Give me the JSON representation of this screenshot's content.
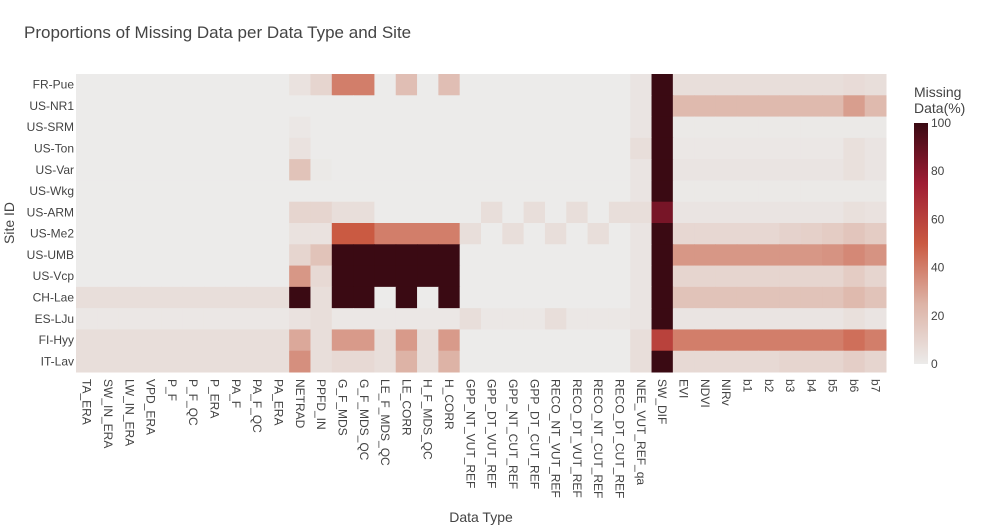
{
  "chart_data": {
    "type": "heatmap",
    "title": "Proportions of Missing Data per Data Type and Site",
    "xlabel": "Data Type",
    "ylabel": "Site ID",
    "x": [
      "TA_ERA",
      "SW_IN_ERA",
      "LW_IN_ERA",
      "VPD_ERA",
      "P_F",
      "P_F_QC",
      "P_ERA",
      "PA_F",
      "PA_F_QC",
      "PA_ERA",
      "NETRAD",
      "PPFD_IN",
      "G_F_MDS",
      "G_F_MDS_QC",
      "LE_F_MDS_QC",
      "LE_CORR",
      "H_F_MDS_QC",
      "H_CORR",
      "GPP_NT_VUT_REF",
      "GPP_DT_VUT_REF",
      "GPP_NT_CUT_REF",
      "GPP_DT_CUT_REF",
      "RECO_NT_VUT_REF",
      "RECO_DT_VUT_REF",
      "RECO_NT_CUT_REF",
      "RECO_DT_CUT_REF",
      "NEE_VUT_REF_qa",
      "SW_DIF",
      "EVI",
      "NDVI",
      "NIRv",
      "b1",
      "b2",
      "b3",
      "b4",
      "b5",
      "b6",
      "b7"
    ],
    "y": [
      "FR-Pue",
      "US-NR1",
      "US-SRM",
      "US-Ton",
      "US-Var",
      "US-Wkg",
      "US-ARM",
      "US-Me2",
      "US-UMB",
      "US-Vcp",
      "CH-Lae",
      "ES-LJu",
      "FI-Hyy",
      "IT-Lav"
    ],
    "z": [
      [
        0,
        0,
        0,
        0,
        0,
        0,
        0,
        0,
        0,
        0,
        4,
        10,
        40,
        40,
        0,
        20,
        0,
        20,
        0,
        0,
        0,
        0,
        0,
        0,
        0,
        0,
        3,
        100,
        6,
        6,
        6,
        6,
        6,
        6,
        6,
        6,
        7,
        6
      ],
      [
        0,
        0,
        0,
        0,
        0,
        0,
        0,
        0,
        0,
        0,
        0,
        0,
        0,
        0,
        0,
        0,
        0,
        0,
        0,
        0,
        0,
        0,
        0,
        0,
        0,
        0,
        3,
        100,
        22,
        22,
        22,
        22,
        22,
        22,
        22,
        22,
        31,
        22
      ],
      [
        0,
        0,
        0,
        0,
        0,
        0,
        0,
        0,
        0,
        0,
        2,
        0,
        0,
        0,
        0,
        0,
        0,
        0,
        0,
        0,
        0,
        0,
        0,
        0,
        0,
        0,
        3,
        100,
        1,
        1,
        1,
        1,
        1,
        1,
        1,
        1,
        1,
        1
      ],
      [
        0,
        0,
        0,
        0,
        0,
        0,
        0,
        0,
        0,
        0,
        4,
        0,
        0,
        0,
        0,
        0,
        0,
        0,
        0,
        0,
        0,
        0,
        0,
        0,
        0,
        0,
        6,
        100,
        2,
        2,
        2,
        2,
        2,
        2,
        2,
        2,
        5,
        3
      ],
      [
        0,
        0,
        0,
        0,
        0,
        0,
        0,
        0,
        0,
        0,
        18,
        1,
        0,
        0,
        0,
        0,
        0,
        0,
        0,
        0,
        0,
        0,
        0,
        0,
        0,
        0,
        3,
        100,
        3,
        3,
        3,
        3,
        3,
        3,
        3,
        3,
        5,
        3
      ],
      [
        0,
        0,
        0,
        0,
        0,
        0,
        0,
        0,
        0,
        0,
        0,
        0,
        0,
        0,
        0,
        0,
        0,
        0,
        0,
        0,
        0,
        0,
        0,
        0,
        0,
        0,
        3,
        100,
        1,
        1,
        1,
        1,
        1,
        1,
        1,
        1,
        1,
        1
      ],
      [
        0,
        0,
        0,
        0,
        0,
        0,
        0,
        0,
        0,
        0,
        10,
        10,
        6,
        6,
        0,
        0,
        0,
        0,
        0,
        6,
        0,
        6,
        0,
        6,
        0,
        6,
        6,
        85,
        3,
        3,
        3,
        3,
        3,
        3,
        3,
        3,
        5,
        4
      ],
      [
        0,
        0,
        0,
        0,
        0,
        0,
        0,
        0,
        0,
        0,
        4,
        4,
        50,
        50,
        40,
        40,
        40,
        40,
        6,
        0,
        6,
        0,
        6,
        0,
        6,
        0,
        3,
        100,
        9,
        9,
        9,
        9,
        9,
        11,
        12,
        14,
        17,
        14
      ],
      [
        0,
        0,
        0,
        0,
        0,
        0,
        0,
        0,
        0,
        0,
        10,
        18,
        100,
        100,
        100,
        100,
        100,
        100,
        0,
        0,
        0,
        0,
        0,
        0,
        0,
        0,
        3,
        100,
        33,
        33,
        33,
        33,
        33,
        33,
        33,
        34,
        37,
        34
      ],
      [
        0,
        0,
        0,
        0,
        0,
        0,
        0,
        0,
        0,
        0,
        33,
        8,
        100,
        100,
        100,
        100,
        100,
        100,
        0,
        0,
        0,
        0,
        0,
        0,
        0,
        0,
        3,
        100,
        10,
        10,
        10,
        10,
        10,
        10,
        10,
        10,
        14,
        10
      ],
      [
        6,
        6,
        6,
        6,
        6,
        6,
        6,
        6,
        6,
        6,
        100,
        6,
        100,
        100,
        0,
        100,
        0,
        100,
        0,
        0,
        0,
        0,
        0,
        0,
        0,
        0,
        3,
        100,
        18,
        18,
        18,
        18,
        18,
        18,
        18,
        18,
        22,
        18
      ],
      [
        2,
        2,
        2,
        2,
        2,
        2,
        2,
        2,
        2,
        2,
        4,
        6,
        2,
        2,
        2,
        2,
        2,
        2,
        6,
        2,
        2,
        2,
        6,
        2,
        2,
        2,
        3,
        100,
        3,
        3,
        3,
        3,
        3,
        3,
        3,
        3,
        5,
        3
      ],
      [
        6,
        6,
        6,
        6,
        6,
        6,
        6,
        6,
        6,
        6,
        28,
        6,
        32,
        32,
        6,
        32,
        6,
        32,
        0,
        0,
        0,
        0,
        0,
        0,
        0,
        0,
        6,
        60,
        40,
        40,
        40,
        40,
        40,
        40,
        40,
        40,
        44,
        40
      ],
      [
        6,
        6,
        6,
        6,
        6,
        6,
        6,
        6,
        6,
        6,
        35,
        6,
        8,
        8,
        6,
        25,
        6,
        25,
        0,
        0,
        0,
        0,
        0,
        0,
        0,
        0,
        6,
        100,
        8,
        8,
        8,
        8,
        8,
        10,
        10,
        10,
        13,
        10
      ]
    ],
    "colorscale": {
      "title": "Missing Data(%)",
      "min": 0,
      "max": 100,
      "ticks": [
        0,
        20,
        40,
        60,
        80,
        100
      ],
      "colors": [
        "#ecebea",
        "#ddb3a6",
        "#ca5a42",
        "#9f1d34",
        "#3a0a13"
      ]
    },
    "grid": false,
    "legend": "right"
  }
}
